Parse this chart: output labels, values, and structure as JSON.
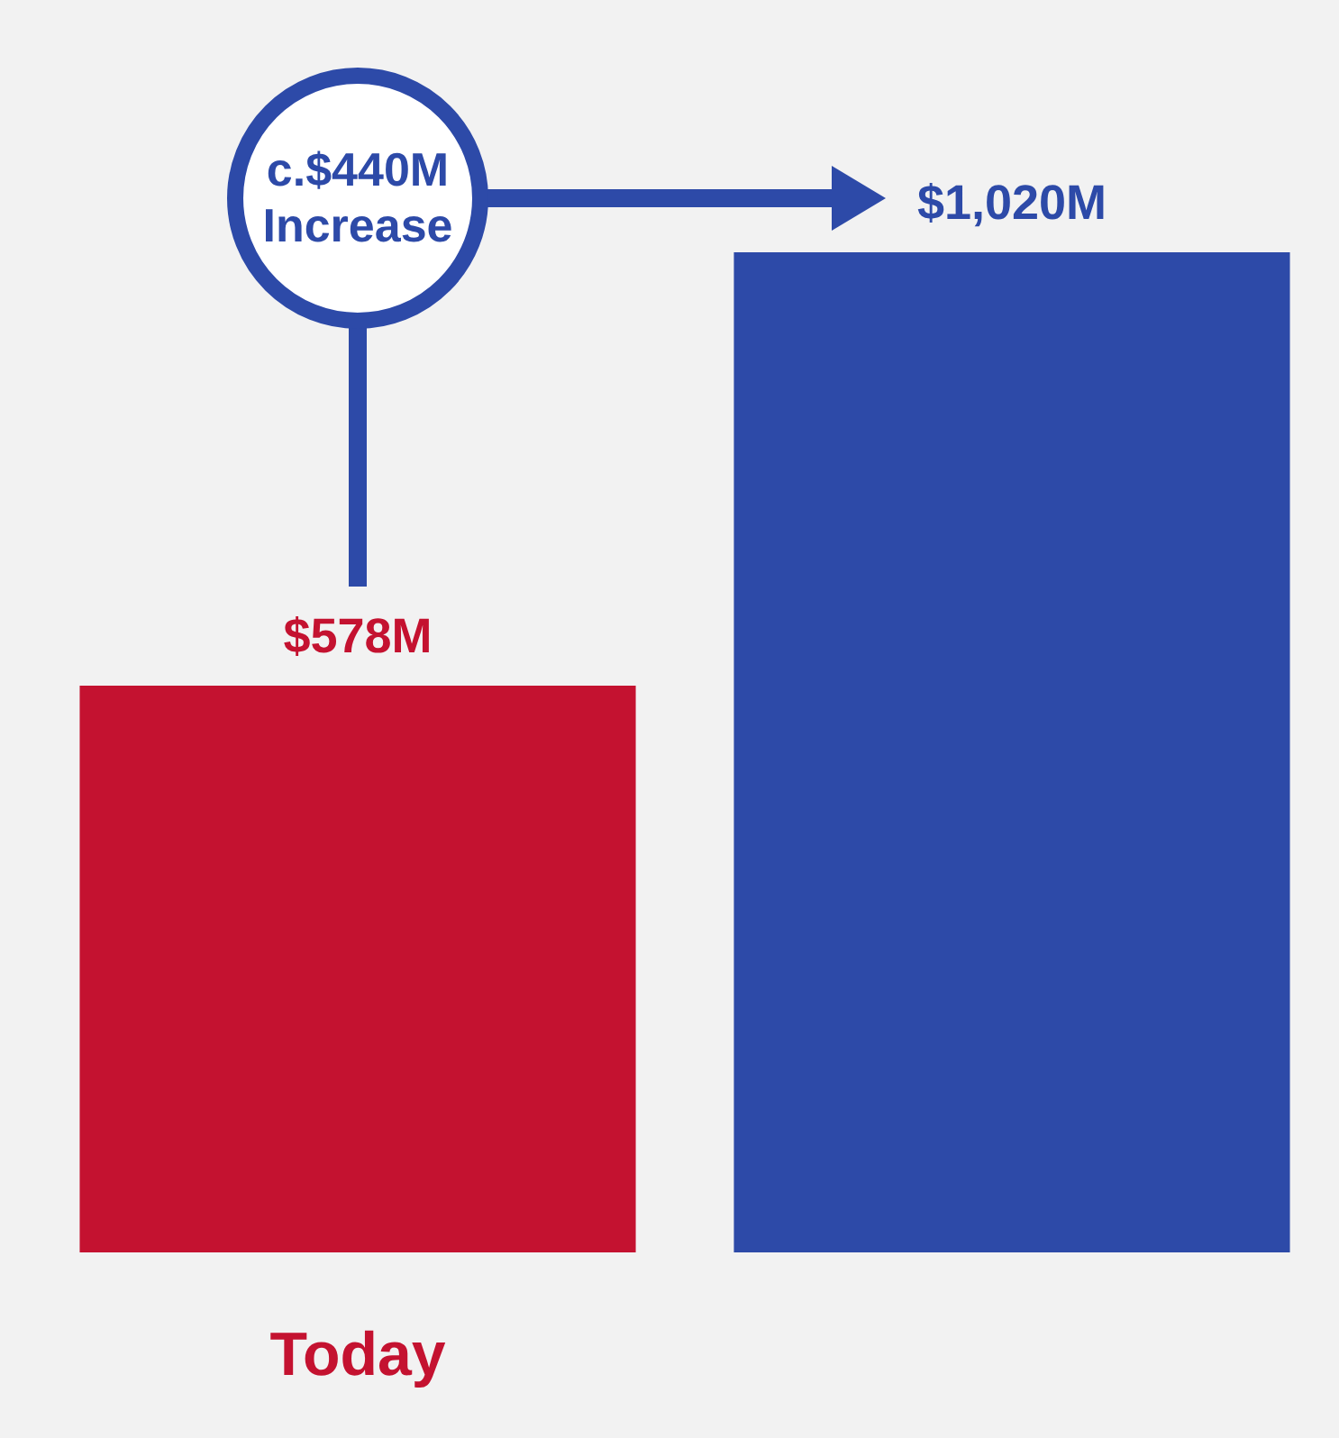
{
  "chart_data": {
    "type": "bar",
    "categories": [
      "Today",
      null
    ],
    "values": [
      578,
      1020
    ],
    "colors": [
      "#c41230",
      "#2d4aa8"
    ],
    "value_labels": [
      "$578M",
      "$1,020M"
    ],
    "annotations": [
      "c.$440M Increase"
    ]
  }
}
